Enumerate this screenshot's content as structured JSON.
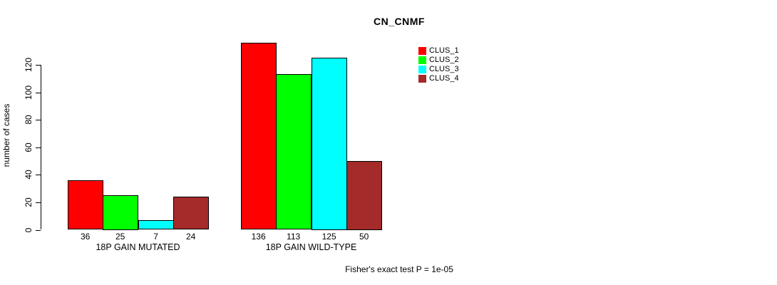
{
  "chart_data": {
    "type": "bar",
    "title": "CN_CNMF",
    "ylabel": "number of cases",
    "xlabel": "",
    "categories": [
      "18P GAIN MUTATED",
      "18P GAIN WILD-TYPE"
    ],
    "series": [
      {
        "name": "CLUS_1",
        "color": "#ff0000",
        "values": [
          36,
          136
        ]
      },
      {
        "name": "CLUS_2",
        "color": "#00ff00",
        "values": [
          25,
          113
        ]
      },
      {
        "name": "CLUS_3",
        "color": "#00ffff",
        "values": [
          7,
          125
        ]
      },
      {
        "name": "CLUS_4",
        "color": "#a52a2a",
        "values": [
          24,
          50
        ]
      }
    ],
    "yticks": [
      0,
      20,
      40,
      60,
      80,
      100,
      120
    ],
    "ylim": [
      0,
      140
    ],
    "show_bar_values": true,
    "grid": false,
    "bar_border_color": "#000000",
    "legend_position": "top-right",
    "annotation": "Fisher's exact test P = 1e-05"
  }
}
